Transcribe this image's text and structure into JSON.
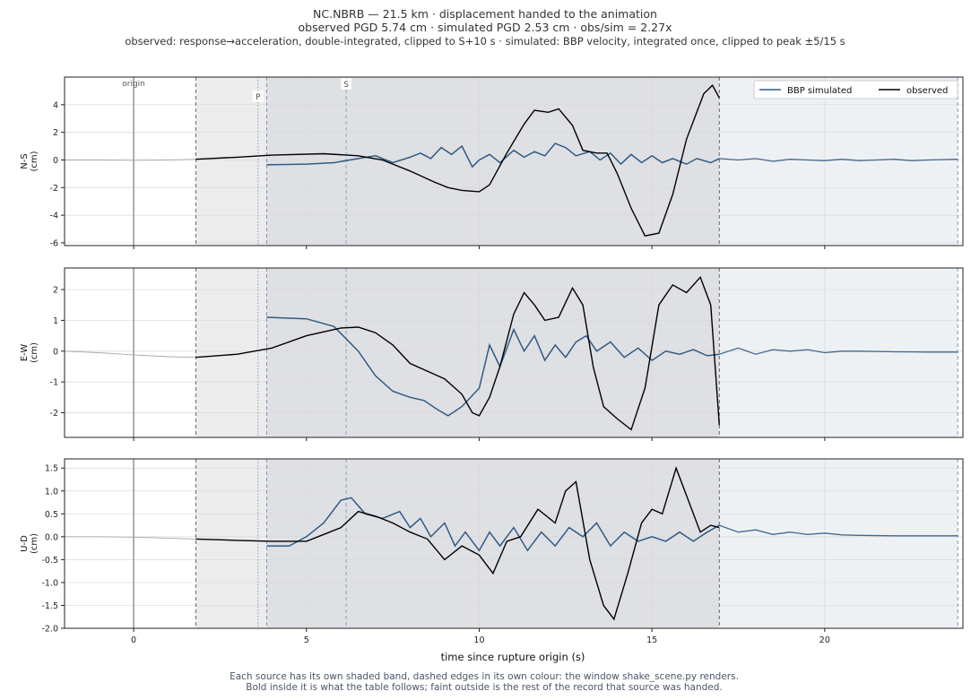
{
  "figure": {
    "title_lines": [
      "NC.NBRB  —  21.5 km   ·   displacement handed to the animation",
      "observed PGD 5.74 cm   ·   simulated PGD 2.53 cm   ·   obs/sim = 2.27x",
      "observed: response→acceleration, double-integrated, clipped to S+10 s   ·   simulated: BBP velocity, integrated once, clipped to peak ±5/15 s"
    ],
    "footer_lines": [
      "Each source has its own shaded band, dashed edges in its own colour: the window shake_scene.py renders.",
      "Bold inside it is what the table follows;   faint outside is the rest of the record that source was handed."
    ],
    "xlabel": "time since rupture origin (s)",
    "legend": {
      "simulated": "BBP simulated",
      "observed": "observed",
      "placement": "top-right of first panel"
    },
    "markers": {
      "origin": "origin",
      "p": "P",
      "s": "S"
    },
    "colors": {
      "simulated": "#2f5a85",
      "observed": "#000000",
      "faint": "#a6a6a6",
      "sim_band": "#eef1f4",
      "obs_band": "#ececec",
      "overlap_band": "#dfe0e4"
    }
  },
  "chart_data": {
    "type": "line",
    "x_range": [
      -2.0,
      24.0
    ],
    "x_ticks": [
      0,
      5,
      10,
      15,
      20
    ],
    "times": {
      "origin": 0.0,
      "P": 3.6,
      "sim_start": 3.85,
      "S": 6.15,
      "obs_start": 1.8,
      "obs_end": 16.95,
      "sim_end": 23.85
    },
    "panels": [
      {
        "ylabel": "N-S\n(cm)",
        "ylim": [
          -6.2,
          6.0
        ],
        "yticks": [
          -6,
          -4,
          -2,
          0,
          2,
          4
        ],
        "observed_faint": [
          [
            -2.0,
            0.0
          ],
          [
            -1.0,
            0.0
          ],
          [
            0.0,
            -0.02
          ],
          [
            1.0,
            0.0
          ],
          [
            1.8,
            0.05
          ]
        ],
        "observed": [
          [
            1.8,
            0.05
          ],
          [
            3.0,
            0.2
          ],
          [
            4.0,
            0.35
          ],
          [
            5.5,
            0.45
          ],
          [
            6.5,
            0.3
          ],
          [
            7.2,
            0.0
          ],
          [
            8.0,
            -0.8
          ],
          [
            8.7,
            -1.6
          ],
          [
            9.1,
            -2.0
          ],
          [
            9.5,
            -2.2
          ],
          [
            10.0,
            -2.3
          ],
          [
            10.3,
            -1.8
          ],
          [
            10.8,
            0.5
          ],
          [
            11.3,
            2.6
          ],
          [
            11.6,
            3.6
          ],
          [
            12.0,
            3.45
          ],
          [
            12.3,
            3.7
          ],
          [
            12.7,
            2.5
          ],
          [
            13.0,
            0.7
          ],
          [
            13.4,
            0.5
          ],
          [
            13.7,
            0.5
          ],
          [
            14.0,
            -1.0
          ],
          [
            14.4,
            -3.5
          ],
          [
            14.8,
            -5.5
          ],
          [
            15.2,
            -5.3
          ],
          [
            15.6,
            -2.5
          ],
          [
            16.0,
            1.5
          ],
          [
            16.5,
            4.8
          ],
          [
            16.75,
            5.4
          ],
          [
            16.95,
            4.5
          ]
        ],
        "simulated_faint": [
          [
            16.95,
            0.1
          ],
          [
            17.5,
            0.0
          ],
          [
            18.0,
            0.1
          ],
          [
            18.5,
            -0.1
          ],
          [
            19.0,
            0.05
          ],
          [
            19.5,
            0.0
          ],
          [
            20.0,
            -0.05
          ],
          [
            20.5,
            0.05
          ],
          [
            21.0,
            -0.05
          ],
          [
            21.5,
            0.0
          ],
          [
            22.0,
            0.05
          ],
          [
            22.5,
            -0.05
          ],
          [
            23.0,
            0.0
          ],
          [
            23.85,
            0.05
          ]
        ],
        "simulated": [
          [
            3.85,
            -0.35
          ],
          [
            5.0,
            -0.3
          ],
          [
            5.8,
            -0.2
          ],
          [
            6.5,
            0.1
          ],
          [
            7.0,
            0.3
          ],
          [
            7.5,
            -0.2
          ],
          [
            8.0,
            0.2
          ],
          [
            8.3,
            0.5
          ],
          [
            8.6,
            0.1
          ],
          [
            8.9,
            0.9
          ],
          [
            9.2,
            0.4
          ],
          [
            9.5,
            1.0
          ],
          [
            9.8,
            -0.5
          ],
          [
            10.0,
            0.0
          ],
          [
            10.3,
            0.4
          ],
          [
            10.6,
            -0.2
          ],
          [
            11.0,
            0.7
          ],
          [
            11.3,
            0.2
          ],
          [
            11.6,
            0.6
          ],
          [
            11.9,
            0.3
          ],
          [
            12.2,
            1.2
          ],
          [
            12.5,
            0.9
          ],
          [
            12.8,
            0.3
          ],
          [
            13.2,
            0.6
          ],
          [
            13.5,
            0.0
          ],
          [
            13.8,
            0.5
          ],
          [
            14.1,
            -0.3
          ],
          [
            14.4,
            0.4
          ],
          [
            14.7,
            -0.2
          ],
          [
            15.0,
            0.3
          ],
          [
            15.3,
            -0.2
          ],
          [
            15.6,
            0.1
          ],
          [
            16.0,
            -0.3
          ],
          [
            16.3,
            0.1
          ],
          [
            16.7,
            -0.2
          ],
          [
            16.95,
            0.1
          ]
        ]
      },
      {
        "ylabel": "E-W\n(cm)",
        "ylim": [
          -2.8,
          2.7
        ],
        "yticks": [
          -2,
          -1,
          0,
          1,
          2
        ],
        "observed_faint": [
          [
            -2.0,
            0.0
          ],
          [
            -1.0,
            -0.05
          ],
          [
            0.0,
            -0.12
          ],
          [
            1.0,
            -0.18
          ],
          [
            1.8,
            -0.2
          ]
        ],
        "observed": [
          [
            1.8,
            -0.2
          ],
          [
            3.0,
            -0.1
          ],
          [
            4.0,
            0.1
          ],
          [
            5.0,
            0.5
          ],
          [
            6.0,
            0.75
          ],
          [
            6.5,
            0.78
          ],
          [
            7.0,
            0.6
          ],
          [
            7.5,
            0.2
          ],
          [
            8.0,
            -0.4
          ],
          [
            8.5,
            -0.65
          ],
          [
            9.0,
            -0.9
          ],
          [
            9.5,
            -1.4
          ],
          [
            9.8,
            -2.0
          ],
          [
            10.0,
            -2.1
          ],
          [
            10.3,
            -1.5
          ],
          [
            10.6,
            -0.5
          ],
          [
            11.0,
            1.2
          ],
          [
            11.3,
            1.9
          ],
          [
            11.6,
            1.5
          ],
          [
            11.9,
            1.0
          ],
          [
            12.3,
            1.1
          ],
          [
            12.7,
            2.05
          ],
          [
            13.0,
            1.5
          ],
          [
            13.3,
            -0.5
          ],
          [
            13.6,
            -1.8
          ],
          [
            14.0,
            -2.2
          ],
          [
            14.4,
            -2.55
          ],
          [
            14.8,
            -1.2
          ],
          [
            15.2,
            1.5
          ],
          [
            15.6,
            2.15
          ],
          [
            16.0,
            1.9
          ],
          [
            16.4,
            2.4
          ],
          [
            16.7,
            1.5
          ],
          [
            16.95,
            -2.4
          ]
        ],
        "simulated_faint": [
          [
            16.95,
            -0.1
          ],
          [
            17.5,
            0.1
          ],
          [
            18.0,
            -0.1
          ],
          [
            18.5,
            0.05
          ],
          [
            19.0,
            0.0
          ],
          [
            19.5,
            0.05
          ],
          [
            20.0,
            -0.05
          ],
          [
            20.5,
            0.0
          ],
          [
            21.0,
            0.0
          ],
          [
            22.0,
            -0.02
          ],
          [
            23.0,
            -0.03
          ],
          [
            23.85,
            -0.03
          ]
        ],
        "simulated": [
          [
            3.85,
            1.1
          ],
          [
            5.0,
            1.05
          ],
          [
            5.8,
            0.8
          ],
          [
            6.5,
            0.0
          ],
          [
            7.0,
            -0.8
          ],
          [
            7.5,
            -1.3
          ],
          [
            8.0,
            -1.5
          ],
          [
            8.4,
            -1.6
          ],
          [
            8.8,
            -1.9
          ],
          [
            9.1,
            -2.1
          ],
          [
            9.5,
            -1.8
          ],
          [
            10.0,
            -1.2
          ],
          [
            10.3,
            0.2
          ],
          [
            10.6,
            -0.5
          ],
          [
            11.0,
            0.7
          ],
          [
            11.3,
            0.0
          ],
          [
            11.6,
            0.5
          ],
          [
            11.9,
            -0.3
          ],
          [
            12.2,
            0.2
          ],
          [
            12.5,
            -0.2
          ],
          [
            12.8,
            0.3
          ],
          [
            13.1,
            0.5
          ],
          [
            13.4,
            0.0
          ],
          [
            13.8,
            0.3
          ],
          [
            14.2,
            -0.2
          ],
          [
            14.6,
            0.1
          ],
          [
            15.0,
            -0.3
          ],
          [
            15.4,
            0.0
          ],
          [
            15.8,
            -0.1
          ],
          [
            16.2,
            0.05
          ],
          [
            16.6,
            -0.15
          ],
          [
            16.95,
            -0.1
          ]
        ]
      },
      {
        "ylabel": "U-D\n(cm)",
        "ylim": [
          -2.0,
          1.7
        ],
        "yticks": [
          -2.0,
          -1.5,
          -1.0,
          -0.5,
          0.0,
          0.5,
          1.0,
          1.5
        ],
        "observed_faint": [
          [
            -2.0,
            0.0
          ],
          [
            -1.0,
            0.0
          ],
          [
            0.0,
            -0.01
          ],
          [
            1.0,
            -0.03
          ],
          [
            1.8,
            -0.05
          ]
        ],
        "observed": [
          [
            1.8,
            -0.05
          ],
          [
            3.0,
            -0.08
          ],
          [
            4.0,
            -0.1
          ],
          [
            5.0,
            -0.1
          ],
          [
            5.5,
            0.05
          ],
          [
            6.0,
            0.2
          ],
          [
            6.5,
            0.55
          ],
          [
            7.0,
            0.45
          ],
          [
            7.5,
            0.3
          ],
          [
            8.0,
            0.1
          ],
          [
            8.5,
            -0.05
          ],
          [
            9.0,
            -0.5
          ],
          [
            9.5,
            -0.2
          ],
          [
            10.0,
            -0.4
          ],
          [
            10.4,
            -0.8
          ],
          [
            10.8,
            -0.1
          ],
          [
            11.2,
            0.0
          ],
          [
            11.7,
            0.6
          ],
          [
            12.2,
            0.3
          ],
          [
            12.5,
            1.0
          ],
          [
            12.8,
            1.2
          ],
          [
            13.2,
            -0.5
          ],
          [
            13.6,
            -1.5
          ],
          [
            13.9,
            -1.8
          ],
          [
            14.3,
            -0.8
          ],
          [
            14.7,
            0.3
          ],
          [
            15.0,
            0.6
          ],
          [
            15.3,
            0.5
          ],
          [
            15.7,
            1.5
          ],
          [
            16.0,
            0.9
          ],
          [
            16.4,
            0.1
          ],
          [
            16.7,
            0.25
          ],
          [
            16.95,
            0.2
          ]
        ],
        "simulated_faint": [
          [
            16.95,
            0.25
          ],
          [
            17.5,
            0.1
          ],
          [
            18.0,
            0.15
          ],
          [
            18.5,
            0.05
          ],
          [
            19.0,
            0.1
          ],
          [
            19.5,
            0.05
          ],
          [
            20.0,
            0.08
          ],
          [
            20.5,
            0.04
          ],
          [
            21.0,
            0.03
          ],
          [
            22.0,
            0.02
          ],
          [
            23.0,
            0.02
          ],
          [
            23.85,
            0.02
          ]
        ],
        "simulated": [
          [
            3.85,
            -0.2
          ],
          [
            4.5,
            -0.2
          ],
          [
            5.0,
            0.0
          ],
          [
            5.5,
            0.3
          ],
          [
            6.0,
            0.8
          ],
          [
            6.3,
            0.85
          ],
          [
            6.7,
            0.5
          ],
          [
            7.2,
            0.4
          ],
          [
            7.7,
            0.55
          ],
          [
            8.0,
            0.2
          ],
          [
            8.3,
            0.4
          ],
          [
            8.6,
            0.0
          ],
          [
            9.0,
            0.3
          ],
          [
            9.3,
            -0.2
          ],
          [
            9.6,
            0.1
          ],
          [
            10.0,
            -0.3
          ],
          [
            10.3,
            0.1
          ],
          [
            10.6,
            -0.2
          ],
          [
            11.0,
            0.2
          ],
          [
            11.4,
            -0.3
          ],
          [
            11.8,
            0.1
          ],
          [
            12.2,
            -0.2
          ],
          [
            12.6,
            0.2
          ],
          [
            13.0,
            0.0
          ],
          [
            13.4,
            0.3
          ],
          [
            13.8,
            -0.2
          ],
          [
            14.2,
            0.1
          ],
          [
            14.6,
            -0.1
          ],
          [
            15.0,
            0.0
          ],
          [
            15.4,
            -0.1
          ],
          [
            15.8,
            0.1
          ],
          [
            16.2,
            -0.1
          ],
          [
            16.6,
            0.1
          ],
          [
            16.95,
            0.25
          ]
        ]
      }
    ]
  }
}
